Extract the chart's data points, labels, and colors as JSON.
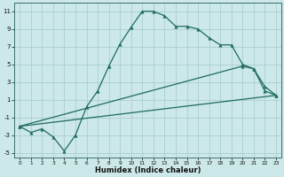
{
  "xlabel": "Humidex (Indice chaleur)",
  "background_color": "#cce8e8",
  "grid_color": "#aacfcf",
  "line_color": "#1e6b5e",
  "line1_x": [
    0,
    1,
    2,
    3,
    4,
    5,
    6,
    7,
    8,
    9,
    10,
    11,
    12,
    13,
    14,
    15,
    16,
    17,
    18,
    19,
    20,
    21,
    22,
    23
  ],
  "line1_y": [
    -2,
    -2.7,
    -2.3,
    -3.2,
    -4.8,
    -3.0,
    0.2,
    2.0,
    4.8,
    7.3,
    9.2,
    11.0,
    11.0,
    10.5,
    9.3,
    9.3,
    9.0,
    8.0,
    7.2,
    7.2,
    5.0,
    4.5,
    2.0,
    1.5
  ],
  "line2_x": [
    0,
    23
  ],
  "line2_y": [
    -2.0,
    1.5
  ],
  "line3_x": [
    0,
    20,
    21,
    22,
    23
  ],
  "line3_y": [
    -2.0,
    4.8,
    4.5,
    2.5,
    1.5
  ],
  "ylim": [
    -5.5,
    12
  ],
  "xlim": [
    -0.5,
    23.5
  ],
  "yticks": [
    -5,
    -3,
    -1,
    1,
    3,
    5,
    7,
    9,
    11
  ],
  "xticks": [
    0,
    1,
    2,
    3,
    4,
    5,
    6,
    7,
    8,
    9,
    10,
    11,
    12,
    13,
    14,
    15,
    16,
    17,
    18,
    19,
    20,
    21,
    22,
    23
  ]
}
